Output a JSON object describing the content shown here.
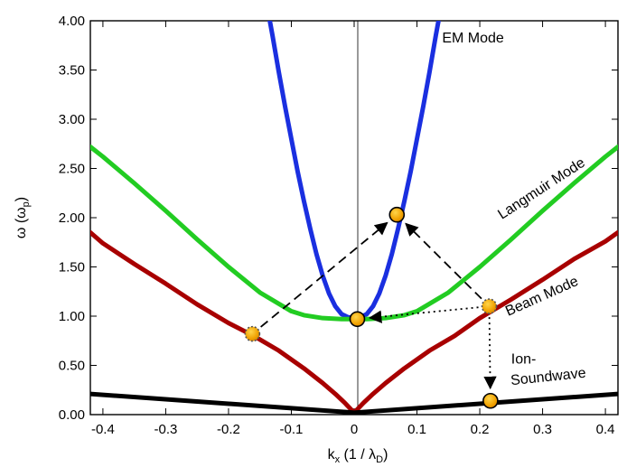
{
  "chart_data": {
    "type": "line",
    "xlim": [
      -0.42,
      0.42
    ],
    "ylim": [
      0,
      4
    ],
    "grid": false,
    "legend": "none",
    "xlabel": {
      "main": "k",
      "sub": "x",
      "unit": " (1 / λ",
      "unit_sub": "D",
      "close": ")"
    },
    "ylabel": {
      "main": "ω (ω",
      "sub": "p",
      "close": ")"
    },
    "x_ticks": [
      {
        "value": -0.4,
        "label": "-0.4"
      },
      {
        "value": -0.3,
        "label": "-0.3"
      },
      {
        "value": -0.2,
        "label": "-0.2"
      },
      {
        "value": -0.1,
        "label": "-0.1"
      },
      {
        "value": 0.0,
        "label": "0"
      },
      {
        "value": 0.1,
        "label": "0.1"
      },
      {
        "value": 0.2,
        "label": "0.2"
      },
      {
        "value": 0.3,
        "label": "0.3"
      },
      {
        "value": 0.4,
        "label": "0.4"
      }
    ],
    "y_ticks": [
      {
        "value": 0.0,
        "label": "0.00"
      },
      {
        "value": 0.5,
        "label": "0.50"
      },
      {
        "value": 1.0,
        "label": "1.00"
      },
      {
        "value": 1.5,
        "label": "1.50"
      },
      {
        "value": 2.0,
        "label": "2.00"
      },
      {
        "value": 2.5,
        "label": "2.50"
      },
      {
        "value": 3.0,
        "label": "3.00"
      },
      {
        "value": 3.5,
        "label": "3.50"
      },
      {
        "value": 4.0,
        "label": "4.00"
      }
    ],
    "series": [
      {
        "key": "em",
        "color": "#1a2fe0",
        "x": [
          -0.14,
          -0.13,
          -0.12,
          -0.11,
          -0.1,
          -0.09,
          -0.08,
          -0.07,
          -0.06,
          -0.05,
          -0.04,
          -0.03,
          -0.02,
          -0.01,
          0.0,
          0.01,
          0.02,
          0.03,
          0.04,
          0.05,
          0.06,
          0.07,
          0.08,
          0.09,
          0.1,
          0.11,
          0.12,
          0.13,
          0.14
        ],
        "y": [
          4.2,
          3.85,
          3.48,
          3.13,
          2.8,
          2.47,
          2.17,
          1.89,
          1.63,
          1.41,
          1.23,
          1.1,
          1.02,
          0.99,
          0.98,
          0.99,
          1.02,
          1.1,
          1.23,
          1.41,
          1.63,
          1.89,
          2.17,
          2.47,
          2.8,
          3.13,
          3.48,
          3.85,
          4.2
        ]
      },
      {
        "key": "langmuir",
        "color": "#22cc22",
        "x": [
          -0.42,
          -0.4,
          -0.35,
          -0.3,
          -0.25,
          -0.2,
          -0.15,
          -0.1,
          -0.08,
          -0.05,
          -0.02,
          0.0,
          0.02,
          0.05,
          0.08,
          0.1,
          0.15,
          0.2,
          0.25,
          0.3,
          0.35,
          0.4,
          0.42
        ],
        "y": [
          2.72,
          2.62,
          2.35,
          2.07,
          1.78,
          1.5,
          1.24,
          1.05,
          1.01,
          0.98,
          0.97,
          0.97,
          0.97,
          0.98,
          1.01,
          1.05,
          1.24,
          1.5,
          1.78,
          2.07,
          2.35,
          2.62,
          2.72
        ]
      },
      {
        "key": "beam",
        "color": "#a80000",
        "x": [
          -0.42,
          -0.4,
          -0.35,
          -0.3,
          -0.25,
          -0.2,
          -0.16,
          -0.12,
          -0.08,
          -0.05,
          -0.03,
          -0.015,
          0.0,
          0.015,
          0.03,
          0.05,
          0.08,
          0.12,
          0.16,
          0.2,
          0.25,
          0.3,
          0.35,
          0.4,
          0.42
        ],
        "y": [
          1.85,
          1.74,
          1.53,
          1.33,
          1.12,
          0.93,
          0.8,
          0.65,
          0.47,
          0.32,
          0.21,
          0.12,
          0.02,
          0.12,
          0.21,
          0.32,
          0.47,
          0.65,
          0.8,
          0.98,
          1.17,
          1.37,
          1.58,
          1.76,
          1.85
        ]
      },
      {
        "key": "ion",
        "color": "#000000",
        "x": [
          -0.42,
          0.0,
          0.42
        ],
        "y": [
          0.21,
          0.02,
          0.21
        ]
      }
    ],
    "series_labels": [
      {
        "key": "em",
        "text": "EM Mode",
        "x": 0.14,
        "y": 3.78,
        "rotate": 0
      },
      {
        "key": "langmuir",
        "text": "Langmuir Mode",
        "x": 0.235,
        "y": 1.98,
        "rotate": -33
      },
      {
        "key": "beam",
        "text": "Beam Mode",
        "x": 0.245,
        "y": 1.0,
        "rotate": -24
      },
      {
        "key": "ion1",
        "text": "Ion-",
        "x": 0.25,
        "y": 0.52,
        "rotate": 0
      },
      {
        "key": "ion2",
        "text": "Soundwave",
        "x": 0.25,
        "y": 0.3,
        "rotate": -6
      }
    ],
    "points": [
      {
        "key": "beam-left",
        "x": -0.162,
        "y": 0.82,
        "style": "dashed"
      },
      {
        "key": "beam-right",
        "x": 0.215,
        "y": 1.1,
        "style": "dashed"
      },
      {
        "key": "em-lower",
        "x": 0.005,
        "y": 0.97,
        "style": "solid"
      },
      {
        "key": "em-upper",
        "x": 0.068,
        "y": 2.03,
        "style": "solid"
      },
      {
        "key": "ion-point",
        "x": 0.217,
        "y": 0.14,
        "style": "solid"
      }
    ],
    "arrows": [
      {
        "key": "left-to-upper",
        "from": [
          -0.162,
          0.82
        ],
        "to": [
          0.068,
          2.03
        ],
        "style": "dashed"
      },
      {
        "key": "right-to-upper",
        "from": [
          0.215,
          1.1
        ],
        "to": [
          0.068,
          2.03
        ],
        "style": "dashed"
      },
      {
        "key": "right-to-lower",
        "from": [
          0.215,
          1.1
        ],
        "to": [
          0.005,
          0.97
        ],
        "style": "dotted"
      },
      {
        "key": "right-to-ion",
        "from": [
          0.215,
          1.1
        ],
        "to": [
          0.217,
          0.14
        ],
        "style": "dotted"
      }
    ]
  }
}
